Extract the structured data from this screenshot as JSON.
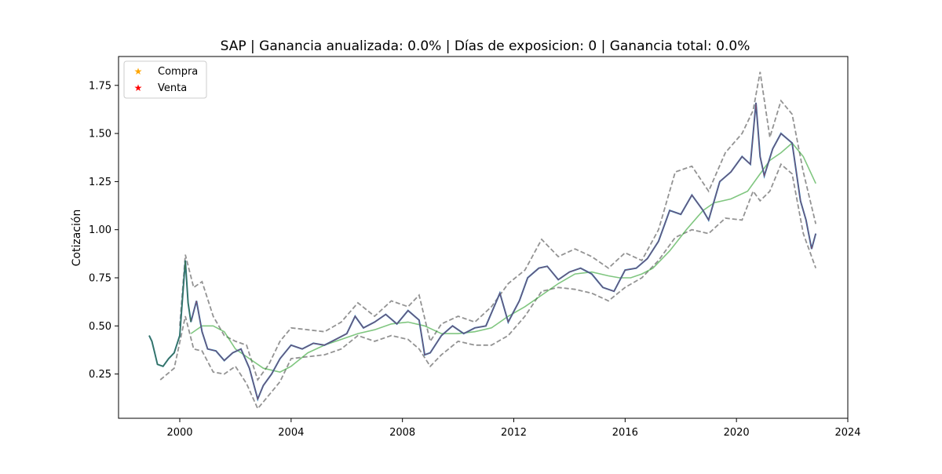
{
  "chart_data": {
    "type": "line",
    "title": "SAP | Ganancia anualizada:   0.0% | Días de exposicion:      0 | Ganancia total:   0.0%",
    "xlabel": "",
    "ylabel": "Cotización",
    "xlim": [
      1997.8,
      2024.0
    ],
    "ylim": [
      0.02,
      1.9
    ],
    "x_ticks": [
      2000,
      2004,
      2008,
      2012,
      2016,
      2020,
      2024
    ],
    "y_ticks": [
      0.25,
      0.5,
      0.75,
      1.0,
      1.25,
      1.5,
      1.75
    ],
    "y_tick_labels": [
      "0.25",
      "0.50",
      "0.75",
      "1.00",
      "1.25",
      "1.50",
      "1.75"
    ],
    "grid": false,
    "legend_position": "top-left",
    "legend": [
      {
        "label": "Compra",
        "marker": "star",
        "color": "#ffa500"
      },
      {
        "label": "Venta",
        "marker": "star",
        "color": "#ff0000"
      }
    ],
    "colors": {
      "price": "#1f77b4",
      "short_ma": "#d62728",
      "long_ma": "#2ca02c",
      "bands": "#808080",
      "early_segment": "#2e7d4f"
    },
    "series": [
      {
        "kind": "price",
        "x": [
          1998.9,
          1999.0,
          1999.1,
          1999.2,
          1999.4,
          1999.6,
          1999.8,
          2000.0,
          2000.1,
          2000.2,
          2000.3,
          2000.4,
          2000.6,
          2000.8,
          2001.0,
          2001.3,
          2001.6,
          2001.9,
          2002.2,
          2002.5,
          2002.8,
          2003.0,
          2003.3,
          2003.6,
          2004.0,
          2004.4,
          2004.8,
          2005.2,
          2005.6,
          2006.0,
          2006.3,
          2006.6,
          2007.0,
          2007.4,
          2007.8,
          2008.2,
          2008.6,
          2008.8,
          2009.0,
          2009.4,
          2009.8,
          2010.2,
          2010.6,
          2011.0,
          2011.5,
          2011.8,
          2012.2,
          2012.5,
          2012.9,
          2013.2,
          2013.6,
          2014.0,
          2014.4,
          2014.8,
          2015.2,
          2015.6,
          2016.0,
          2016.4,
          2016.8,
          2017.2,
          2017.6,
          2018.0,
          2018.4,
          2018.8,
          2019.0,
          2019.4,
          2019.8,
          2020.2,
          2020.5,
          2020.7,
          2020.85,
          2021.0,
          2021.3,
          2021.6,
          2022.0,
          2022.3,
          2022.5,
          2022.7,
          2022.85
        ],
        "y": [
          0.45,
          0.42,
          0.36,
          0.3,
          0.29,
          0.33,
          0.36,
          0.45,
          0.65,
          0.84,
          0.62,
          0.52,
          0.63,
          0.47,
          0.38,
          0.37,
          0.32,
          0.36,
          0.38,
          0.28,
          0.12,
          0.19,
          0.25,
          0.33,
          0.4,
          0.38,
          0.41,
          0.4,
          0.43,
          0.46,
          0.55,
          0.49,
          0.52,
          0.56,
          0.51,
          0.58,
          0.53,
          0.35,
          0.36,
          0.45,
          0.5,
          0.46,
          0.49,
          0.5,
          0.67,
          0.52,
          0.63,
          0.75,
          0.8,
          0.81,
          0.74,
          0.78,
          0.8,
          0.77,
          0.7,
          0.68,
          0.79,
          0.8,
          0.85,
          0.94,
          1.1,
          1.08,
          1.18,
          1.1,
          1.05,
          1.25,
          1.3,
          1.38,
          1.34,
          1.66,
          1.38,
          1.28,
          1.42,
          1.5,
          1.45,
          1.15,
          1.05,
          0.9,
          0.98
        ]
      },
      {
        "kind": "long_ma",
        "x": [
          2000.4,
          2000.8,
          2001.2,
          2001.6,
          2002.0,
          2002.5,
          2003.0,
          2003.6,
          2004.0,
          2004.6,
          2005.2,
          2005.8,
          2006.4,
          2007.0,
          2007.6,
          2008.2,
          2008.8,
          2009.4,
          2010.0,
          2010.6,
          2011.2,
          2011.8,
          2012.4,
          2013.0,
          2013.6,
          2014.2,
          2014.8,
          2015.4,
          2015.8,
          2016.2,
          2016.6,
          2017.0,
          2017.6,
          2018.2,
          2018.8,
          2019.2,
          2019.8,
          2020.4,
          2020.8,
          2021.2,
          2021.6,
          2022.0,
          2022.4,
          2022.85
        ],
        "y": [
          0.46,
          0.5,
          0.5,
          0.47,
          0.38,
          0.33,
          0.28,
          0.26,
          0.29,
          0.36,
          0.4,
          0.43,
          0.46,
          0.48,
          0.51,
          0.52,
          0.5,
          0.46,
          0.46,
          0.47,
          0.49,
          0.55,
          0.6,
          0.66,
          0.72,
          0.77,
          0.78,
          0.76,
          0.75,
          0.75,
          0.77,
          0.8,
          0.89,
          1.0,
          1.1,
          1.14,
          1.16,
          1.2,
          1.28,
          1.36,
          1.4,
          1.45,
          1.38,
          1.24
        ]
      },
      {
        "kind": "upper_band",
        "x": [
          2000.0,
          2000.2,
          2000.5,
          2000.8,
          2001.2,
          2001.6,
          2002.0,
          2002.4,
          2002.8,
          2003.2,
          2003.6,
          2004.0,
          2004.6,
          2005.2,
          2005.8,
          2006.4,
          2007.0,
          2007.6,
          2008.2,
          2008.6,
          2009.0,
          2009.4,
          2010.0,
          2010.6,
          2011.2,
          2011.8,
          2012.4,
          2013.0,
          2013.6,
          2014.2,
          2014.8,
          2015.4,
          2016.0,
          2016.6,
          2017.2,
          2017.8,
          2018.4,
          2019.0,
          2019.6,
          2020.2,
          2020.6,
          2020.85,
          2021.2,
          2021.6,
          2022.0,
          2022.4,
          2022.85
        ],
        "y": [
          0.5,
          0.87,
          0.7,
          0.73,
          0.55,
          0.45,
          0.42,
          0.4,
          0.22,
          0.3,
          0.42,
          0.49,
          0.48,
          0.47,
          0.52,
          0.62,
          0.55,
          0.63,
          0.6,
          0.66,
          0.42,
          0.51,
          0.55,
          0.52,
          0.6,
          0.72,
          0.79,
          0.95,
          0.86,
          0.9,
          0.86,
          0.8,
          0.88,
          0.84,
          1.0,
          1.3,
          1.33,
          1.2,
          1.4,
          1.5,
          1.62,
          1.82,
          1.48,
          1.67,
          1.6,
          1.3,
          1.03
        ]
      },
      {
        "kind": "lower_band",
        "x": [
          1999.3,
          1999.8,
          2000.2,
          2000.5,
          2000.8,
          2001.2,
          2001.6,
          2002.0,
          2002.4,
          2002.8,
          2003.2,
          2003.6,
          2004.0,
          2004.6,
          2005.2,
          2005.8,
          2006.4,
          2007.0,
          2007.6,
          2008.2,
          2008.6,
          2009.0,
          2009.4,
          2010.0,
          2010.6,
          2011.2,
          2011.8,
          2012.4,
          2013.0,
          2013.6,
          2014.2,
          2014.8,
          2015.4,
          2016.0,
          2016.6,
          2017.2,
          2017.8,
          2018.4,
          2019.0,
          2019.6,
          2020.2,
          2020.6,
          2020.85,
          2021.2,
          2021.6,
          2022.0,
          2022.4,
          2022.85
        ],
        "y": [
          0.22,
          0.28,
          0.55,
          0.38,
          0.37,
          0.26,
          0.25,
          0.29,
          0.2,
          0.07,
          0.14,
          0.21,
          0.33,
          0.34,
          0.35,
          0.38,
          0.45,
          0.42,
          0.45,
          0.43,
          0.38,
          0.29,
          0.35,
          0.42,
          0.4,
          0.4,
          0.45,
          0.55,
          0.68,
          0.7,
          0.69,
          0.67,
          0.63,
          0.7,
          0.75,
          0.84,
          0.96,
          1.0,
          0.98,
          1.06,
          1.05,
          1.2,
          1.15,
          1.2,
          1.34,
          1.29,
          0.98,
          0.8
        ]
      }
    ]
  }
}
